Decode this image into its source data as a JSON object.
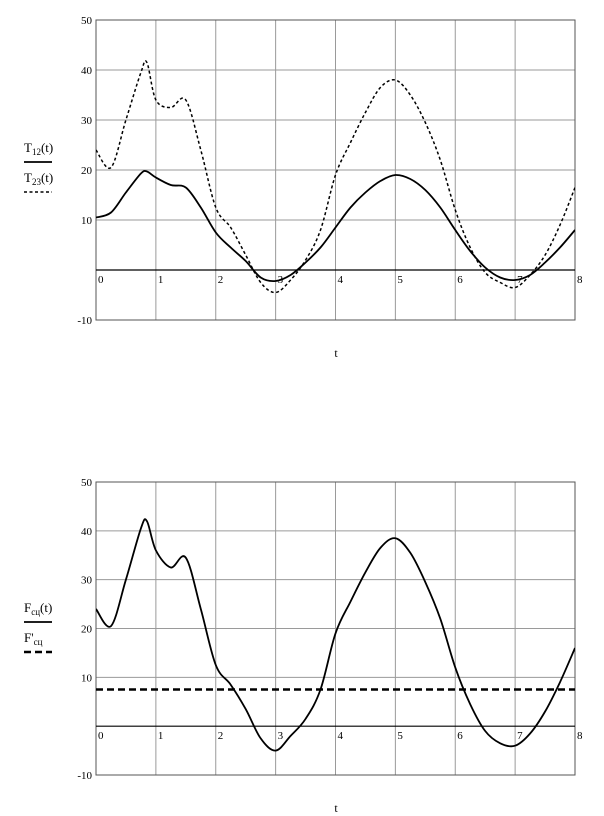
{
  "chart_data": [
    {
      "type": "line",
      "xlabel": "t",
      "ylabel": "",
      "xlim": [
        0,
        8
      ],
      "ylim": [
        -10,
        50
      ],
      "grid": true,
      "x_ticks": [
        "0",
        "1",
        "2",
        "3",
        "4",
        "5",
        "6",
        "7",
        "8"
      ],
      "y_ticks": [
        "-10",
        "10",
        "20",
        "30",
        "40",
        "50"
      ],
      "legend_position": "left",
      "series": [
        {
          "name": "T12(t)",
          "name_main": "T",
          "name_sub": "12",
          "name_arg": "(t)",
          "style": "solid",
          "x": [
            0,
            0.25,
            0.5,
            0.75,
            0.85,
            1.0,
            1.25,
            1.5,
            1.75,
            2.0,
            2.25,
            2.5,
            2.75,
            3.0,
            3.25,
            3.5,
            3.75,
            4.0,
            4.25,
            4.5,
            4.75,
            5.0,
            5.25,
            5.5,
            5.75,
            6.0,
            6.25,
            6.5,
            6.75,
            7.0,
            7.25,
            7.5,
            7.75,
            8.0
          ],
          "y": [
            10.5,
            11.5,
            15.5,
            19.3,
            19.7,
            18.5,
            17.0,
            16.5,
            12.5,
            7.5,
            4.5,
            1.8,
            -1.5,
            -2.2,
            -1.0,
            1.5,
            4.5,
            8.5,
            12.5,
            15.5,
            17.8,
            19.0,
            18.2,
            16.0,
            12.5,
            8.0,
            3.8,
            0.5,
            -1.5,
            -2.0,
            -1.0,
            1.5,
            4.5,
            8.0
          ]
        },
        {
          "name": "T23(t)",
          "name_main": "T",
          "name_sub": "23",
          "name_arg": "(t)",
          "style": "dotted",
          "x": [
            0,
            0.25,
            0.5,
            0.75,
            0.85,
            1.0,
            1.25,
            1.5,
            1.75,
            2.0,
            2.25,
            2.5,
            2.75,
            3.0,
            3.25,
            3.5,
            3.75,
            4.0,
            4.25,
            4.5,
            4.75,
            5.0,
            5.25,
            5.5,
            5.75,
            6.0,
            6.25,
            6.5,
            6.75,
            7.0,
            7.25,
            7.5,
            7.75,
            8.0
          ],
          "y": [
            24.0,
            20.5,
            30.0,
            39.5,
            41.5,
            34.0,
            32.5,
            34.0,
            24.0,
            12.5,
            8.5,
            3.0,
            -2.5,
            -4.5,
            -2.0,
            2.0,
            8.0,
            19.0,
            25.5,
            31.5,
            36.5,
            38.0,
            35.0,
            29.5,
            22.0,
            12.0,
            4.5,
            -0.5,
            -2.5,
            -3.5,
            -1.0,
            3.0,
            9.0,
            16.5
          ]
        }
      ]
    },
    {
      "type": "line",
      "xlabel": "t",
      "ylabel": "",
      "xlim": [
        0,
        8
      ],
      "ylim": [
        -10,
        50
      ],
      "grid": true,
      "x_ticks": [
        "0",
        "1",
        "2",
        "3",
        "4",
        "5",
        "6",
        "7",
        "8"
      ],
      "y_ticks": [
        "-10",
        "10",
        "20",
        "30",
        "40",
        "50"
      ],
      "legend_position": "left",
      "series": [
        {
          "name": "Fсц(t)",
          "name_main": "F",
          "name_sub": "сц",
          "name_arg": "(t)",
          "style": "solid",
          "x": [
            0,
            0.25,
            0.5,
            0.75,
            0.85,
            1.0,
            1.25,
            1.5,
            1.75,
            2.0,
            2.25,
            2.5,
            2.75,
            3.0,
            3.25,
            3.5,
            3.75,
            4.0,
            4.25,
            4.5,
            4.75,
            5.0,
            5.25,
            5.5,
            5.75,
            6.0,
            6.25,
            6.5,
            6.75,
            7.0,
            7.25,
            7.5,
            7.75,
            8.0
          ],
          "y": [
            24.0,
            20.5,
            30.0,
            40.5,
            42.0,
            36.0,
            32.5,
            34.5,
            24.0,
            12.5,
            8.5,
            3.5,
            -2.5,
            -5.0,
            -2.0,
            1.5,
            7.5,
            19.0,
            25.5,
            31.5,
            36.5,
            38.5,
            35.5,
            29.5,
            22.0,
            12.0,
            4.5,
            -1.0,
            -3.5,
            -4.0,
            -1.5,
            3.0,
            9.0,
            16.0
          ]
        },
        {
          "name": "F'сц",
          "name_main": "F'",
          "name_sub": "сц",
          "name_arg": "",
          "style": "dashed",
          "x": [
            0,
            8
          ],
          "y": [
            7.5,
            7.5
          ]
        }
      ]
    }
  ]
}
